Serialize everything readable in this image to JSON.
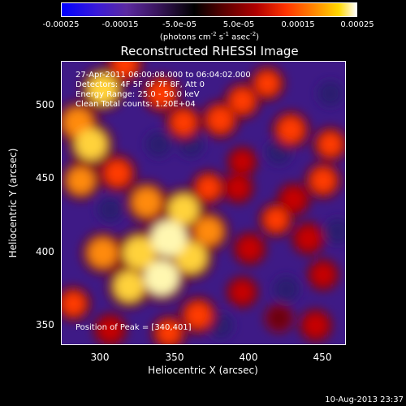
{
  "chart_data": {
    "type": "heatmap",
    "title": "Reconstructed RHESSI Image",
    "xlabel": "Heliocentric X (arcsec)",
    "ylabel": "Heliocentric Y (arcsec)",
    "xlim": [
      272,
      465
    ],
    "ylim": [
      332,
      527
    ],
    "x_ticks": [
      "300",
      "350",
      "400",
      "450"
    ],
    "y_ticks": [
      "350",
      "400",
      "450",
      "500"
    ],
    "colorbar": {
      "ticks": [
        "-0.00025",
        "-0.00015",
        "-5.0e-05",
        "5.0e-05",
        "0.00015",
        "0.00025"
      ],
      "unit_parts": [
        "(photons cm",
        "-2",
        " s",
        "-1",
        " asec",
        "-2",
        ")"
      ],
      "range": [
        -0.00025,
        0.00025
      ],
      "colors": [
        "#0000ff",
        "#5b2aa0",
        "#000000",
        "#b00000",
        "#ff8a00",
        "#ffffff"
      ]
    },
    "info_lines": [
      "27-Apr-2011 06:00:08.000 to 06:04:02.000",
      "Detectors: 4F 5F 6F 7F 8F, Att 0",
      "Energy Range: 25.0 - 50.0 keV",
      "Clean     Total counts: 1.20E+04"
    ],
    "peak_text": "Position of Peak = [340,401]",
    "peak": {
      "x": 340,
      "y": 401
    },
    "blobs": [
      {
        "x": 345,
        "y": 405,
        "v": 1.0
      },
      {
        "x": 340,
        "y": 378,
        "v": 0.95
      },
      {
        "x": 325,
        "y": 395,
        "v": 0.85
      },
      {
        "x": 360,
        "y": 392,
        "v": 0.8
      },
      {
        "x": 318,
        "y": 372,
        "v": 0.75
      },
      {
        "x": 300,
        "y": 395,
        "v": 0.7
      },
      {
        "x": 355,
        "y": 425,
        "v": 0.75
      },
      {
        "x": 330,
        "y": 430,
        "v": 0.7
      },
      {
        "x": 372,
        "y": 410,
        "v": 0.65
      },
      {
        "x": 292,
        "y": 470,
        "v": 0.8
      },
      {
        "x": 283,
        "y": 485,
        "v": 0.7
      },
      {
        "x": 300,
        "y": 508,
        "v": 0.75
      },
      {
        "x": 285,
        "y": 445,
        "v": 0.6
      },
      {
        "x": 340,
        "y": 505,
        "v": 0.55
      },
      {
        "x": 355,
        "y": 485,
        "v": 0.5
      },
      {
        "x": 380,
        "y": 487,
        "v": 0.55
      },
      {
        "x": 395,
        "y": 500,
        "v": 0.5
      },
      {
        "x": 412,
        "y": 512,
        "v": 0.45
      },
      {
        "x": 428,
        "y": 480,
        "v": 0.55
      },
      {
        "x": 455,
        "y": 470,
        "v": 0.45
      },
      {
        "x": 450,
        "y": 445,
        "v": 0.5
      },
      {
        "x": 430,
        "y": 432,
        "v": 0.4
      },
      {
        "x": 395,
        "y": 458,
        "v": 0.3
      },
      {
        "x": 392,
        "y": 440,
        "v": 0.35
      },
      {
        "x": 418,
        "y": 418,
        "v": 0.45
      },
      {
        "x": 440,
        "y": 405,
        "v": 0.4
      },
      {
        "x": 450,
        "y": 380,
        "v": 0.35
      },
      {
        "x": 445,
        "y": 345,
        "v": 0.4
      },
      {
        "x": 420,
        "y": 350,
        "v": 0.25
      },
      {
        "x": 395,
        "y": 368,
        "v": 0.35
      },
      {
        "x": 365,
        "y": 352,
        "v": 0.55
      },
      {
        "x": 345,
        "y": 340,
        "v": 0.45
      },
      {
        "x": 305,
        "y": 342,
        "v": 0.4
      },
      {
        "x": 280,
        "y": 360,
        "v": 0.45
      },
      {
        "x": 400,
        "y": 398,
        "v": 0.4
      },
      {
        "x": 310,
        "y": 450,
        "v": 0.55
      },
      {
        "x": 315,
        "y": 525,
        "v": 0.5
      },
      {
        "x": 372,
        "y": 440,
        "v": 0.45
      }
    ],
    "dark_spots": [
      {
        "x": 425,
        "y": 370
      },
      {
        "x": 380,
        "y": 345
      },
      {
        "x": 460,
        "y": 410
      },
      {
        "x": 338,
        "y": 470
      },
      {
        "x": 420,
        "y": 465
      },
      {
        "x": 305,
        "y": 425
      },
      {
        "x": 455,
        "y": 505
      },
      {
        "x": 360,
        "y": 470
      }
    ]
  },
  "footer": {
    "date": "10-Aug-2013 23:37"
  }
}
